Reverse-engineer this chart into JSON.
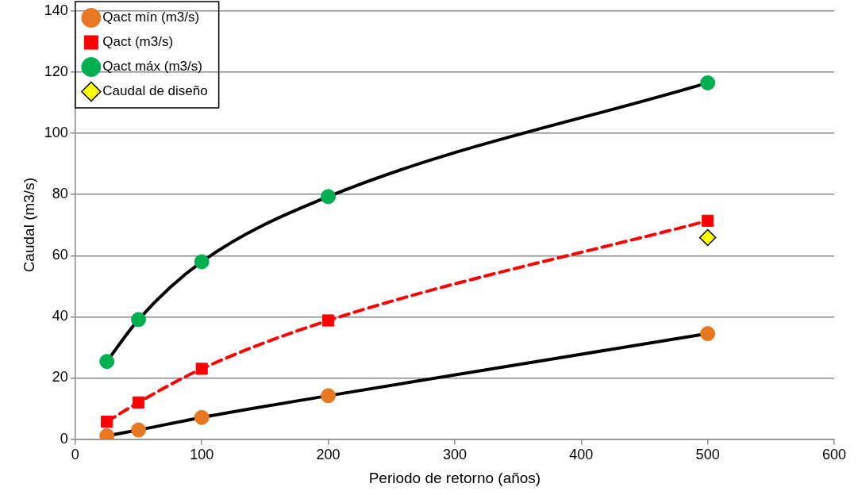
{
  "chart_data": {
    "type": "line",
    "xlabel": "Periodo de retorno (años)",
    "ylabel": "Caudal (m3/s)",
    "xlim": [
      0,
      600
    ],
    "xticks": [
      0,
      100,
      200,
      300,
      400,
      500,
      600
    ],
    "ylim": [
      0,
      140
    ],
    "yticks": [
      0,
      20,
      40,
      60,
      80,
      100,
      120,
      140
    ],
    "grid": "y",
    "legend": "top left",
    "series": [
      {
        "name": "Qact mín (m3/s)",
        "type": "line",
        "color": "#000000",
        "colors": [
          "#e87722",
          "#e87722",
          "#e87722",
          "#e87722",
          "#e87722"
        ],
        "marker": "circle",
        "line_style": "solid",
        "x": [
          25,
          50,
          100,
          200,
          500
        ],
        "values": [
          1.1,
          3.0,
          7.1,
          14.2,
          34.5
        ]
      },
      {
        "name": "Qact (m3/s)",
        "type": "line",
        "color": "#ff0000",
        "marker": "square",
        "line_style": "dashed",
        "x": [
          25,
          50,
          100,
          200,
          500
        ],
        "values": [
          5.7,
          12.0,
          23.0,
          38.8,
          71.4
        ]
      },
      {
        "name": "Qact máx (m3/s)",
        "type": "line",
        "color": "#000000",
        "colors": [
          "#00b050",
          "#00b050",
          "#00b050",
          "#00b050",
          "#00b050"
        ],
        "marker": "circle",
        "line_style": "solid",
        "x": [
          25,
          50,
          100,
          200,
          500
        ],
        "values": [
          25.4,
          39.1,
          58.0,
          79.3,
          116.5
        ]
      },
      {
        "name": "Caudal de diseño",
        "type": "scatter",
        "color": "#ffff00",
        "marker": "diamond",
        "x": [
          500
        ],
        "values": [
          65.9
        ]
      }
    ]
  }
}
